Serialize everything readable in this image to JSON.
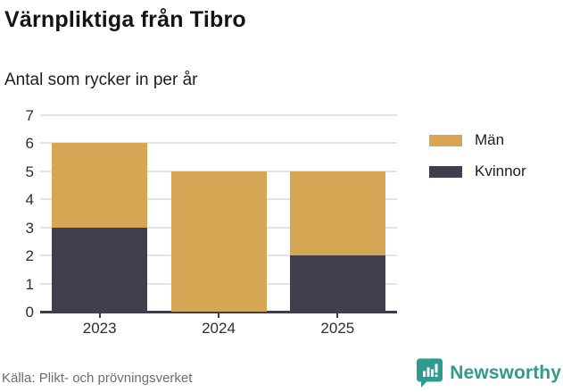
{
  "header": {
    "title": "Värnpliktiga från Tibro",
    "subtitle": "Antal som rycker in per år"
  },
  "footer": {
    "source": "Källa: Plikt- och prövningsverket",
    "brand_name": "Newsworthy"
  },
  "colors": {
    "men": "#d6a654",
    "women": "#413e50",
    "brand_teal": "#2f9a8f",
    "gridline": "#e4e4e4",
    "axis": "#3f3c4e",
    "title_text": "#141414",
    "source_text": "#6e6e6e"
  },
  "chart_data": {
    "type": "bar",
    "stacked": true,
    "title": "Värnpliktiga från Tibro",
    "subtitle": "Antal som rycker in per år",
    "categories": [
      "2023",
      "2024",
      "2025"
    ],
    "series": [
      {
        "name": "Kvinnor",
        "color": "#413e50",
        "values": [
          3,
          0,
          2
        ]
      },
      {
        "name": "Män",
        "color": "#d6a654",
        "values": [
          3,
          5,
          3
        ]
      }
    ],
    "totals": [
      6,
      5,
      5
    ],
    "xlabel": "",
    "ylabel": "",
    "ylim": [
      0,
      7
    ],
    "yticks": [
      0,
      1,
      2,
      3,
      4,
      5,
      6,
      7
    ],
    "grid": true,
    "legend_position": "right",
    "legend_order": [
      "Män",
      "Kvinnor"
    ],
    "source": "Källa: Plikt- och prövningsverket"
  }
}
